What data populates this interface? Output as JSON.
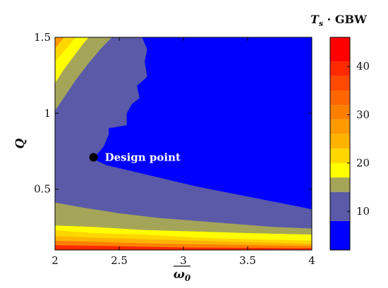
{
  "chart_data": {
    "type": "contour",
    "xlabel": "ω0",
    "ylabel": "Q",
    "colorbar_title_main": "T",
    "colorbar_title_sub": "s",
    "colorbar_title_rest": " · GBW",
    "xlim": [
      2,
      4
    ],
    "ylim": [
      0.1,
      1.5
    ],
    "x_ticks": [
      "2",
      "2.5",
      "3",
      "3.5",
      "4"
    ],
    "y_ticks": [
      "0.5",
      "1",
      "1.5"
    ],
    "colorbar": {
      "range": [
        2,
        46
      ],
      "ticks": [
        "10",
        "20",
        "30",
        "40"
      ],
      "levels": [
        {
          "from": 2,
          "to": 8,
          "color": "#0000ff"
        },
        {
          "from": 8,
          "to": 14,
          "color": "#5a5aa8"
        },
        {
          "from": 14,
          "to": 17,
          "color": "#a5a55a"
        },
        {
          "from": 17,
          "to": 20,
          "color": "#ffff00"
        },
        {
          "from": 20,
          "to": 23,
          "color": "#ffd700"
        },
        {
          "from": 23,
          "to": 26,
          "color": "#ffb300"
        },
        {
          "from": 26,
          "to": 29,
          "color": "#ff9a00"
        },
        {
          "from": 29,
          "to": 32,
          "color": "#ff8000"
        },
        {
          "from": 32,
          "to": 35,
          "color": "#ff6600"
        },
        {
          "from": 35,
          "to": 38,
          "color": "#ff4a00"
        },
        {
          "from": 38,
          "to": 41,
          "color": "#ff2a00"
        },
        {
          "from": 41,
          "to": 46,
          "color": "#ff0000"
        }
      ]
    },
    "regions": [
      {
        "name": "low-band",
        "color": "#5a5aa8",
        "points": [
          [
            2,
            0.1
          ],
          [
            4,
            0.1
          ],
          [
            4,
            1.5
          ],
          [
            2,
            1.5
          ]
        ]
      },
      {
        "name": "top-left-olive",
        "color": "#a5a55a",
        "points": [
          [
            2,
            1.02
          ],
          [
            2.08,
            1.12
          ],
          [
            2.16,
            1.22
          ],
          [
            2.26,
            1.33
          ],
          [
            2.36,
            1.43
          ],
          [
            2.44,
            1.5
          ],
          [
            2,
            1.5
          ]
        ]
      },
      {
        "name": "top-left-yellow",
        "color": "#ffff00",
        "points": [
          [
            2,
            1.2
          ],
          [
            2.06,
            1.28
          ],
          [
            2.14,
            1.37
          ],
          [
            2.22,
            1.46
          ],
          [
            2.26,
            1.5
          ],
          [
            2,
            1.5
          ]
        ]
      },
      {
        "name": "top-left-gold",
        "color": "#ffd700",
        "points": [
          [
            2,
            1.34
          ],
          [
            2.06,
            1.4
          ],
          [
            2.12,
            1.46
          ],
          [
            2.16,
            1.5
          ],
          [
            2,
            1.5
          ]
        ]
      },
      {
        "name": "top-left-orange",
        "color": "#ff9a00",
        "points": [
          [
            2,
            1.43
          ],
          [
            2.04,
            1.47
          ],
          [
            2.07,
            1.5
          ],
          [
            2,
            1.5
          ]
        ]
      },
      {
        "name": "minimum-blue",
        "color": "#0000ff",
        "points": [
          [
            2.68,
            1.5
          ],
          [
            4,
            1.5
          ],
          [
            4,
            0.37
          ],
          [
            3.7,
            0.42
          ],
          [
            3.4,
            0.47
          ],
          [
            3.1,
            0.52
          ],
          [
            2.85,
            0.57
          ],
          [
            2.6,
            0.62
          ],
          [
            2.4,
            0.66
          ],
          [
            2.3,
            0.7
          ],
          [
            2.38,
            0.78
          ],
          [
            2.42,
            0.86
          ],
          [
            2.42,
            0.9
          ],
          [
            2.56,
            0.92
          ],
          [
            2.56,
            1.0
          ],
          [
            2.6,
            1.06
          ],
          [
            2.66,
            1.1
          ],
          [
            2.64,
            1.18
          ],
          [
            2.72,
            1.24
          ],
          [
            2.7,
            1.34
          ],
          [
            2.72,
            1.42
          ]
        ]
      },
      {
        "name": "bottom-olive",
        "color": "#a5a55a",
        "points": [
          [
            2,
            0.41
          ],
          [
            2.2,
            0.38
          ],
          [
            2.5,
            0.34
          ],
          [
            2.8,
            0.31
          ],
          [
            3.1,
            0.29
          ],
          [
            3.4,
            0.27
          ],
          [
            3.7,
            0.25
          ],
          [
            4,
            0.24
          ],
          [
            4,
            0.1
          ],
          [
            2,
            0.1
          ]
        ]
      },
      {
        "name": "bottom-yellow",
        "color": "#ffff00",
        "points": [
          [
            2,
            0.26
          ],
          [
            2.3,
            0.25
          ],
          [
            2.7,
            0.23
          ],
          [
            3.1,
            0.22
          ],
          [
            3.5,
            0.21
          ],
          [
            4,
            0.2
          ],
          [
            4,
            0.1
          ],
          [
            2,
            0.1
          ]
        ]
      },
      {
        "name": "bottom-gold",
        "color": "#ffd700",
        "points": [
          [
            2,
            0.23
          ],
          [
            2.3,
            0.21
          ],
          [
            2.7,
            0.2
          ],
          [
            3.1,
            0.18
          ],
          [
            3.5,
            0.17
          ],
          [
            4,
            0.16
          ],
          [
            4,
            0.1
          ],
          [
            2,
            0.1
          ]
        ]
      },
      {
        "name": "bottom-amber",
        "color": "#ffb300",
        "points": [
          [
            2,
            0.19
          ],
          [
            2.3,
            0.18
          ],
          [
            2.7,
            0.17
          ],
          [
            3.1,
            0.16
          ],
          [
            3.5,
            0.15
          ],
          [
            4,
            0.14
          ],
          [
            4,
            0.1
          ],
          [
            2,
            0.1
          ]
        ]
      },
      {
        "name": "bottom-orange",
        "color": "#ff8000",
        "points": [
          [
            2,
            0.16
          ],
          [
            2.4,
            0.15
          ],
          [
            2.8,
            0.14
          ],
          [
            3.2,
            0.135
          ],
          [
            3.6,
            0.13
          ],
          [
            4,
            0.125
          ],
          [
            4,
            0.1
          ],
          [
            2,
            0.1
          ]
        ]
      },
      {
        "name": "bottom-red",
        "color": "#ff2a00",
        "points": [
          [
            2,
            0.13
          ],
          [
            2.4,
            0.125
          ],
          [
            3,
            0.115
          ],
          [
            4,
            0.11
          ],
          [
            4,
            0.1
          ],
          [
            2,
            0.1
          ]
        ]
      }
    ],
    "annotation": {
      "label": "Design point",
      "x": 2.3,
      "y": 0.71
    }
  }
}
